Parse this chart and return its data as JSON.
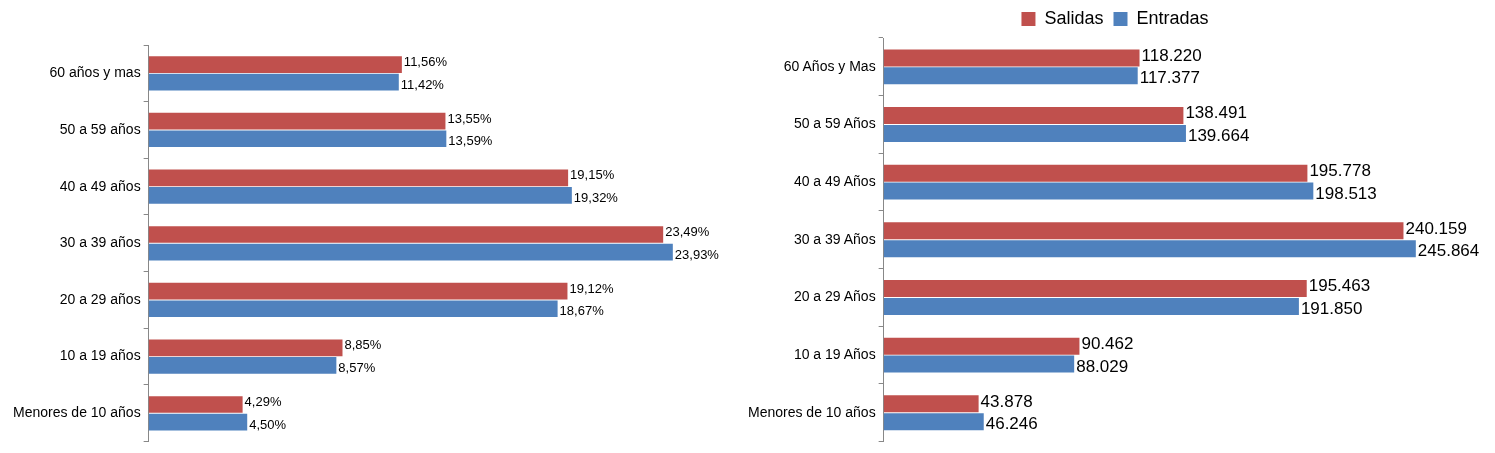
{
  "chart_data": [
    {
      "type": "bar",
      "orientation": "horizontal",
      "categories": [
        "60 años y mas",
        "50 a 59 años",
        "40 a 49 años",
        "30 a 39 años",
        "20 a 29 años",
        "10 a 19 años",
        "Menores de 10 años"
      ],
      "series": [
        {
          "color": "#c0504d",
          "values": [
            11.56,
            13.55,
            19.15,
            23.49,
            19.12,
            8.85,
            4.29
          ],
          "value_labels": [
            "11,56%",
            "13,55%",
            "19,15%",
            "23,49%",
            "19,12%",
            "8,85%",
            "4,29%"
          ]
        },
        {
          "color": "#4f81bd",
          "values": [
            11.42,
            13.59,
            19.32,
            23.93,
            18.67,
            8.57,
            4.5
          ],
          "value_labels": [
            "11,42%",
            "13,59%",
            "19,32%",
            "23,93%",
            "18,67%",
            "8,57%",
            "4,50%"
          ]
        }
      ],
      "legend": false,
      "tick_labels": "y"
    },
    {
      "type": "bar",
      "orientation": "horizontal",
      "categories": [
        "60 Años y Mas",
        "50 a 59 Años",
        "40 a 49 Años",
        "30 a 39 Años",
        "20 a 29 Años",
        "10 a 19 Años",
        "Menores de 10 años"
      ],
      "series": [
        {
          "name": "Salidas",
          "color": "#c0504d",
          "values": [
            118220,
            138491,
            195778,
            240159,
            195463,
            90462,
            43878
          ],
          "value_labels": [
            "118.220",
            "138.491",
            "195.778",
            "240.159",
            "195.463",
            "90.462",
            "43.878"
          ]
        },
        {
          "name": "Entradas",
          "color": "#4f81bd",
          "values": [
            117377,
            139664,
            198513,
            245864,
            191850,
            88029,
            46246
          ],
          "value_labels": [
            "117.377",
            "139.664",
            "198.513",
            "245.864",
            "191.850",
            "88.029",
            "46.246"
          ]
        }
      ],
      "legend": "top",
      "tick_labels": "y"
    }
  ]
}
